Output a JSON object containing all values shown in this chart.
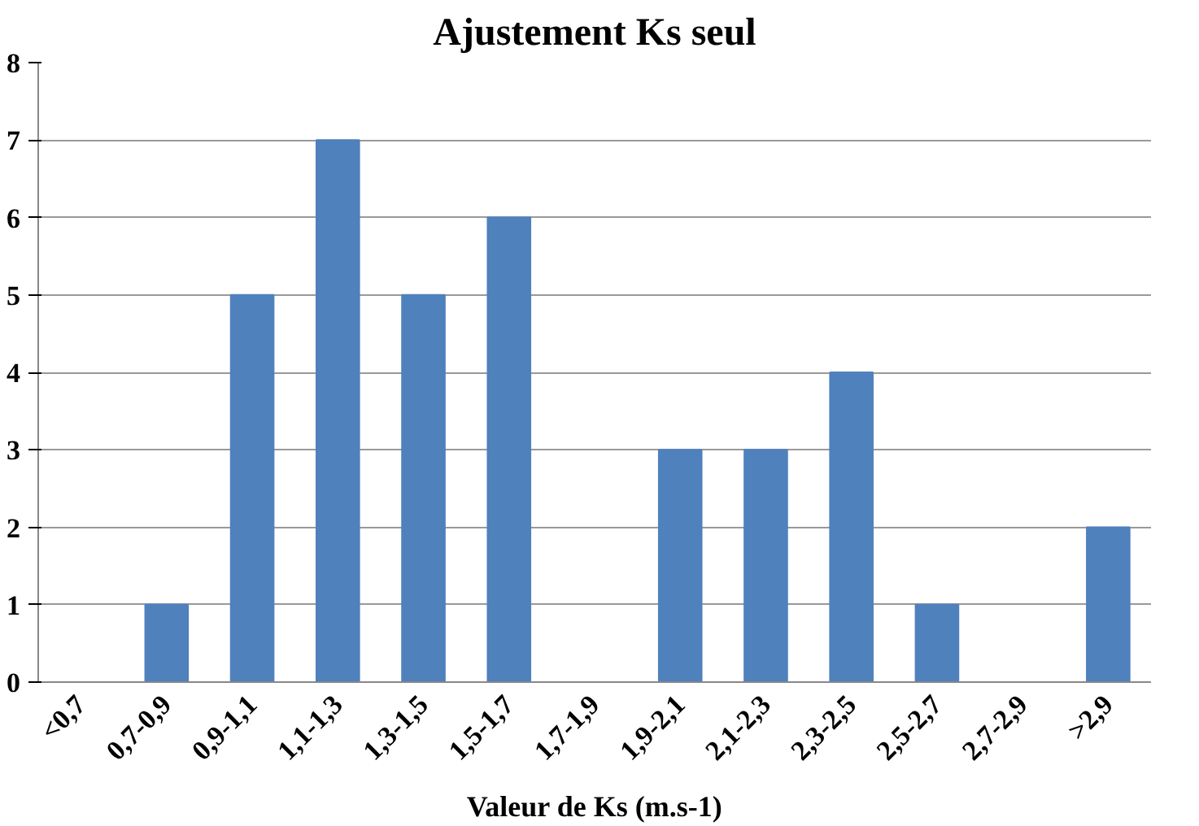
{
  "chart_data": {
    "type": "bar",
    "title": "Ajustement Ks seul",
    "xlabel": "Valeur de Ks (m.s-1)",
    "categories": [
      "<0,7",
      "0,7-0,9",
      "0,9-1,1",
      "1,1-1,3",
      "1,3-1,5",
      "1,5-1,7",
      "1,7-1,9",
      "1,9-2,1",
      "2,1-2,3",
      "2,3-2,5",
      "2,5-2,7",
      "2,7-2,9",
      ">2,9"
    ],
    "values": [
      0,
      1,
      5,
      7,
      5,
      6,
      0,
      3,
      3,
      4,
      1,
      0,
      2
    ],
    "color": "#4f81bd",
    "ylim": [
      0,
      8
    ],
    "yticks": [
      0,
      1,
      2,
      3,
      4,
      5,
      6,
      7,
      8
    ],
    "grid": "y"
  }
}
